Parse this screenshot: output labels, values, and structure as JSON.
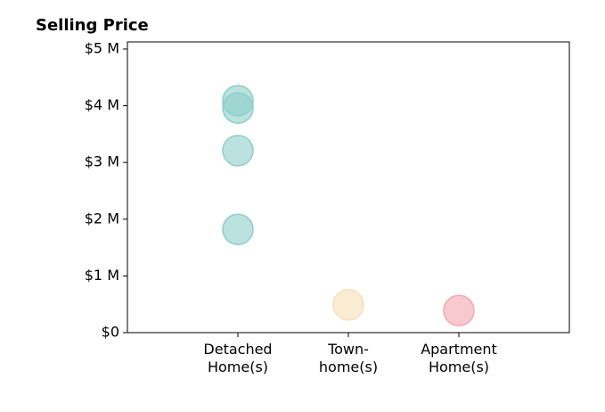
{
  "chart_data": {
    "type": "strip",
    "title": "Selling Price",
    "categories": [
      "Detached\nHome(s)",
      "Town-\nhome(s)",
      "Apartment\nHome(s)"
    ],
    "values": [
      [
        4090000,
        3960000,
        3210000,
        1820000
      ],
      [
        490000
      ],
      [
        390000
      ]
    ],
    "colors": [
      "#8ecfc8",
      "#f7e0b5",
      "#f4a7b0"
    ],
    "ylim": [
      0,
      5125000
    ],
    "yticks": [
      {
        "value": 0,
        "label": "$0"
      },
      {
        "value": 1000000,
        "label": "$1 M"
      },
      {
        "value": 2000000,
        "label": "$2 M"
      },
      {
        "value": 3000000,
        "label": "$3 M"
      },
      {
        "value": 4000000,
        "label": "$4 M"
      },
      {
        "value": 5000000,
        "label": "$5 M"
      }
    ]
  }
}
